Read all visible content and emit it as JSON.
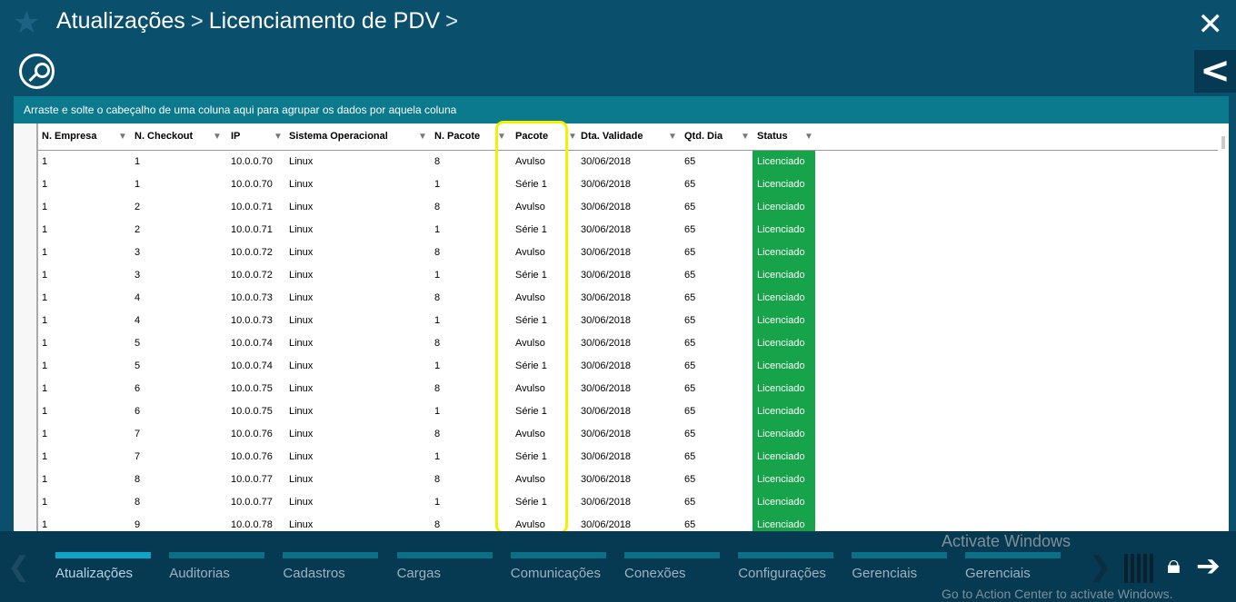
{
  "breadcrumb": [
    "Atualizações",
    "Licenciamento de PDV"
  ],
  "group_hint": "Arraste e solte o cabeçalho de uma coluna aqui para agrupar os dados por aquela coluna",
  "columns": [
    "N. Empresa",
    "N. Checkout",
    "IP",
    "Sistema Operacional",
    "N. Pacote",
    "Pacote",
    "Dta. Validade",
    "Qtd. Dia",
    "Status"
  ],
  "rows": [
    [
      "1",
      "1",
      "10.0.0.70",
      "Linux",
      "8",
      "Avulso",
      "30/06/2018",
      "65",
      "Licenciado"
    ],
    [
      "1",
      "1",
      "10.0.0.70",
      "Linux",
      "1",
      "Série 1",
      "30/06/2018",
      "65",
      "Licenciado"
    ],
    [
      "1",
      "2",
      "10.0.0.71",
      "Linux",
      "8",
      "Avulso",
      "30/06/2018",
      "65",
      "Licenciado"
    ],
    [
      "1",
      "2",
      "10.0.0.71",
      "Linux",
      "1",
      "Série 1",
      "30/06/2018",
      "65",
      "Licenciado"
    ],
    [
      "1",
      "3",
      "10.0.0.72",
      "Linux",
      "8",
      "Avulso",
      "30/06/2018",
      "65",
      "Licenciado"
    ],
    [
      "1",
      "3",
      "10.0.0.72",
      "Linux",
      "1",
      "Série 1",
      "30/06/2018",
      "65",
      "Licenciado"
    ],
    [
      "1",
      "4",
      "10.0.0.73",
      "Linux",
      "8",
      "Avulso",
      "30/06/2018",
      "65",
      "Licenciado"
    ],
    [
      "1",
      "4",
      "10.0.0.73",
      "Linux",
      "1",
      "Série 1",
      "30/06/2018",
      "65",
      "Licenciado"
    ],
    [
      "1",
      "5",
      "10.0.0.74",
      "Linux",
      "8",
      "Avulso",
      "30/06/2018",
      "65",
      "Licenciado"
    ],
    [
      "1",
      "5",
      "10.0.0.74",
      "Linux",
      "1",
      "Série 1",
      "30/06/2018",
      "65",
      "Licenciado"
    ],
    [
      "1",
      "6",
      "10.0.0.75",
      "Linux",
      "8",
      "Avulso",
      "30/06/2018",
      "65",
      "Licenciado"
    ],
    [
      "1",
      "6",
      "10.0.0.75",
      "Linux",
      "1",
      "Série 1",
      "30/06/2018",
      "65",
      "Licenciado"
    ],
    [
      "1",
      "7",
      "10.0.0.76",
      "Linux",
      "8",
      "Avulso",
      "30/06/2018",
      "65",
      "Licenciado"
    ],
    [
      "1",
      "7",
      "10.0.0.76",
      "Linux",
      "1",
      "Série 1",
      "30/06/2018",
      "65",
      "Licenciado"
    ],
    [
      "1",
      "8",
      "10.0.0.77",
      "Linux",
      "8",
      "Avulso",
      "30/06/2018",
      "65",
      "Licenciado"
    ],
    [
      "1",
      "8",
      "10.0.0.77",
      "Linux",
      "1",
      "Série 1",
      "30/06/2018",
      "65",
      "Licenciado"
    ],
    [
      "1",
      "9",
      "10.0.0.78",
      "Linux",
      "8",
      "Avulso",
      "30/06/2018",
      "65",
      "Licenciado"
    ]
  ],
  "status_color": "#16a34a",
  "highlight_color": "#f5f000",
  "bottom_nav": [
    "Atualizações",
    "Auditorias",
    "Cadastros",
    "Cargas",
    "Comunicações",
    "Conexões",
    "Configurações",
    "Gerenciais",
    "Gerenciais"
  ],
  "active_nav": "Atualizações",
  "watermark": {
    "title": "Activate Windows",
    "subtitle": "Go to Action Center to activate Windows."
  }
}
